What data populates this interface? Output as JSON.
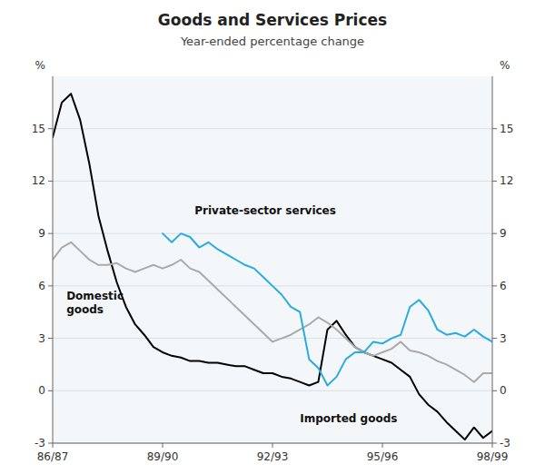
{
  "chart_data": {
    "type": "line",
    "title": "Goods and Services Prices",
    "subtitle": "Year-ended percentage change",
    "ylabel": "%",
    "y2label": "%",
    "xlim": [
      0,
      48
    ],
    "xticks": [
      {
        "value": 0,
        "label": "86/87"
      },
      {
        "value": 12,
        "label": "89/90"
      },
      {
        "value": 24,
        "label": "92/93"
      },
      {
        "value": 36,
        "label": "95/96"
      },
      {
        "value": 48,
        "label": "98/99"
      }
    ],
    "ylim": [
      -3,
      18
    ],
    "yticks": [
      -3,
      0,
      3,
      6,
      9,
      12,
      15
    ],
    "y2lim": [
      -3,
      18
    ],
    "y2ticks": [
      -3,
      0,
      3,
      6,
      9,
      12,
      15
    ],
    "grid": true,
    "series": [
      {
        "color": "#000000",
        "x": [
          0,
          1,
          2,
          3,
          4,
          5,
          6,
          7,
          8,
          9,
          10,
          11,
          12,
          13,
          14,
          15,
          16,
          17,
          18,
          19,
          20,
          21,
          22,
          23,
          24,
          25,
          26,
          27,
          28,
          29,
          30,
          31,
          32,
          33,
          34,
          35,
          36,
          37,
          38,
          39,
          40,
          41,
          42,
          43,
          44,
          45,
          46,
          47,
          48
        ],
        "values": [
          14.5,
          16.5,
          17.0,
          15.5,
          13.0,
          10.0,
          8.0,
          6.2,
          4.8,
          3.8,
          3.2,
          2.5,
          2.2,
          2.0,
          1.9,
          1.7,
          1.7,
          1.6,
          1.6,
          1.5,
          1.4,
          1.4,
          1.2,
          1.0,
          1.0,
          0.8,
          0.7,
          0.5,
          0.3,
          0.5,
          3.5,
          4.0,
          3.2,
          2.5,
          2.2,
          2.0,
          1.8,
          1.6,
          1.2,
          0.8,
          -0.2,
          -0.8,
          -1.2,
          -1.8,
          -2.3,
          -2.8,
          -2.1,
          -2.7,
          -2.3
        ]
      },
      {
        "color": "#aaaaaa",
        "x": [
          0,
          1,
          2,
          3,
          4,
          5,
          6,
          7,
          8,
          9,
          10,
          11,
          12,
          13,
          14,
          15,
          16,
          17,
          18,
          19,
          20,
          21,
          22,
          23,
          24,
          25,
          26,
          27,
          28,
          29,
          30,
          31,
          32,
          33,
          34,
          35,
          36,
          37,
          38,
          39,
          40,
          41,
          42,
          43,
          44,
          45,
          46,
          47,
          48
        ],
        "values": [
          7.5,
          8.2,
          8.5,
          8.0,
          7.5,
          7.2,
          7.2,
          7.3,
          7.0,
          6.8,
          7.0,
          7.2,
          7.0,
          7.2,
          7.5,
          7.0,
          6.8,
          6.3,
          5.8,
          5.3,
          4.8,
          4.3,
          3.8,
          3.3,
          2.8,
          3.0,
          3.2,
          3.5,
          3.8,
          4.2,
          3.9,
          3.5,
          3.0,
          2.5,
          2.2,
          2.0,
          2.2,
          2.4,
          2.8,
          2.3,
          2.2,
          2.0,
          1.7,
          1.5,
          1.2,
          0.9,
          0.5,
          1.0,
          1.0
        ]
      },
      {
        "color": "#29ABE2",
        "x": [
          12,
          13,
          14,
          15,
          16,
          17,
          18,
          19,
          20,
          21,
          22,
          23,
          24,
          25,
          26,
          27,
          28,
          29,
          30,
          31,
          32,
          33,
          34,
          35,
          36,
          37,
          38,
          39,
          40,
          41,
          42,
          43,
          44,
          45,
          46,
          47,
          48
        ],
        "values": [
          9.0,
          8.5,
          9.0,
          8.8,
          8.2,
          8.5,
          8.1,
          7.8,
          7.5,
          7.2,
          7.0,
          6.5,
          6.0,
          5.5,
          4.8,
          4.5,
          1.8,
          1.3,
          0.3,
          0.8,
          1.8,
          2.2,
          2.2,
          2.8,
          2.7,
          3.0,
          3.2,
          4.8,
          5.2,
          4.6,
          3.5,
          3.2,
          3.3,
          3.1,
          3.5,
          3.1,
          2.8
        ]
      }
    ],
    "annotations": [
      {
        "text": "Domestic\ngoods",
        "x": 1.5,
        "y": 5.8
      },
      {
        "text": "Private-sector services",
        "x": 15.5,
        "y": 10.7
      },
      {
        "text": "Imported goods",
        "x": 27.0,
        "y": -1.2
      }
    ]
  }
}
